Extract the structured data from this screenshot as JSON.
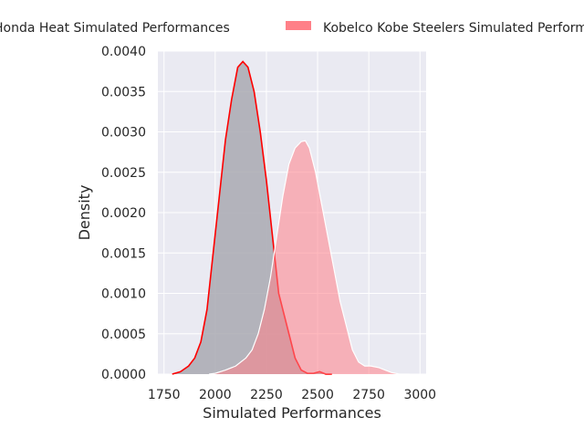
{
  "chart_data": {
    "type": "area",
    "xlabel": "Simulated Performances",
    "ylabel": "Density",
    "xlim": [
      1720,
      3030
    ],
    "ylim": [
      0,
      0.004
    ],
    "x_ticks": [
      1750,
      2000,
      2250,
      2500,
      2750,
      3000
    ],
    "x_tick_labels": [
      "1750",
      "2000",
      "2250",
      "2500",
      "2750",
      "3000"
    ],
    "y_ticks": [
      0,
      0.0005,
      0.001,
      0.0015,
      0.002,
      0.0025,
      0.003,
      0.0035,
      0.004
    ],
    "y_tick_labels": [
      "0.0000",
      "0.0005",
      "0.0010",
      "0.0015",
      "0.0020",
      "0.0025",
      "0.0030",
      "0.0035",
      "0.0040"
    ],
    "grid": true,
    "legend_position": "top",
    "series": [
      {
        "name": "Honda Heat Simulated Performances",
        "fill_color": "#a9a9b2",
        "edge_color": "#ff0000",
        "points": [
          [
            1790,
            0.0
          ],
          [
            1830,
            3e-05
          ],
          [
            1870,
            0.0001
          ],
          [
            1900,
            0.0002
          ],
          [
            1930,
            0.0004
          ],
          [
            1960,
            0.0008
          ],
          [
            1990,
            0.0015
          ],
          [
            2020,
            0.0022
          ],
          [
            2050,
            0.0029
          ],
          [
            2080,
            0.0034
          ],
          [
            2110,
            0.0038
          ],
          [
            2135,
            0.00387
          ],
          [
            2160,
            0.0038
          ],
          [
            2190,
            0.0035
          ],
          [
            2220,
            0.003
          ],
          [
            2250,
            0.0024
          ],
          [
            2280,
            0.0017
          ],
          [
            2310,
            0.001
          ],
          [
            2340,
            0.0007
          ],
          [
            2360,
            0.0005
          ],
          [
            2390,
            0.0002
          ],
          [
            2420,
            5e-05
          ],
          [
            2450,
            1e-05
          ],
          [
            2480,
            1e-05
          ],
          [
            2510,
            3e-05
          ],
          [
            2540,
            0.0
          ],
          [
            2570,
            0.0
          ]
        ]
      },
      {
        "name": "Kobelco Kobe Steelers Simulated Performances",
        "fill_color": "#ff8088",
        "edge_color": "#ffffff",
        "points": [
          [
            1970,
            0.0
          ],
          [
            2000,
            1e-05
          ],
          [
            2050,
            5e-05
          ],
          [
            2100,
            0.0001
          ],
          [
            2150,
            0.0002
          ],
          [
            2180,
            0.0003
          ],
          [
            2210,
            0.0005
          ],
          [
            2240,
            0.0008
          ],
          [
            2270,
            0.0012
          ],
          [
            2300,
            0.0017
          ],
          [
            2330,
            0.0022
          ],
          [
            2360,
            0.0026
          ],
          [
            2390,
            0.0028
          ],
          [
            2420,
            0.00288
          ],
          [
            2440,
            0.00289
          ],
          [
            2460,
            0.0028
          ],
          [
            2490,
            0.0025
          ],
          [
            2520,
            0.0021
          ],
          [
            2550,
            0.0017
          ],
          [
            2580,
            0.0013
          ],
          [
            2610,
            0.0009
          ],
          [
            2640,
            0.0006
          ],
          [
            2670,
            0.0003
          ],
          [
            2700,
            0.00015
          ],
          [
            2730,
            0.0001
          ],
          [
            2760,
            0.0001
          ],
          [
            2800,
            8e-05
          ],
          [
            2830,
            5e-05
          ],
          [
            2860,
            2e-05
          ],
          [
            2900,
            0.0
          ],
          [
            2950,
            0.0
          ]
        ]
      }
    ]
  }
}
